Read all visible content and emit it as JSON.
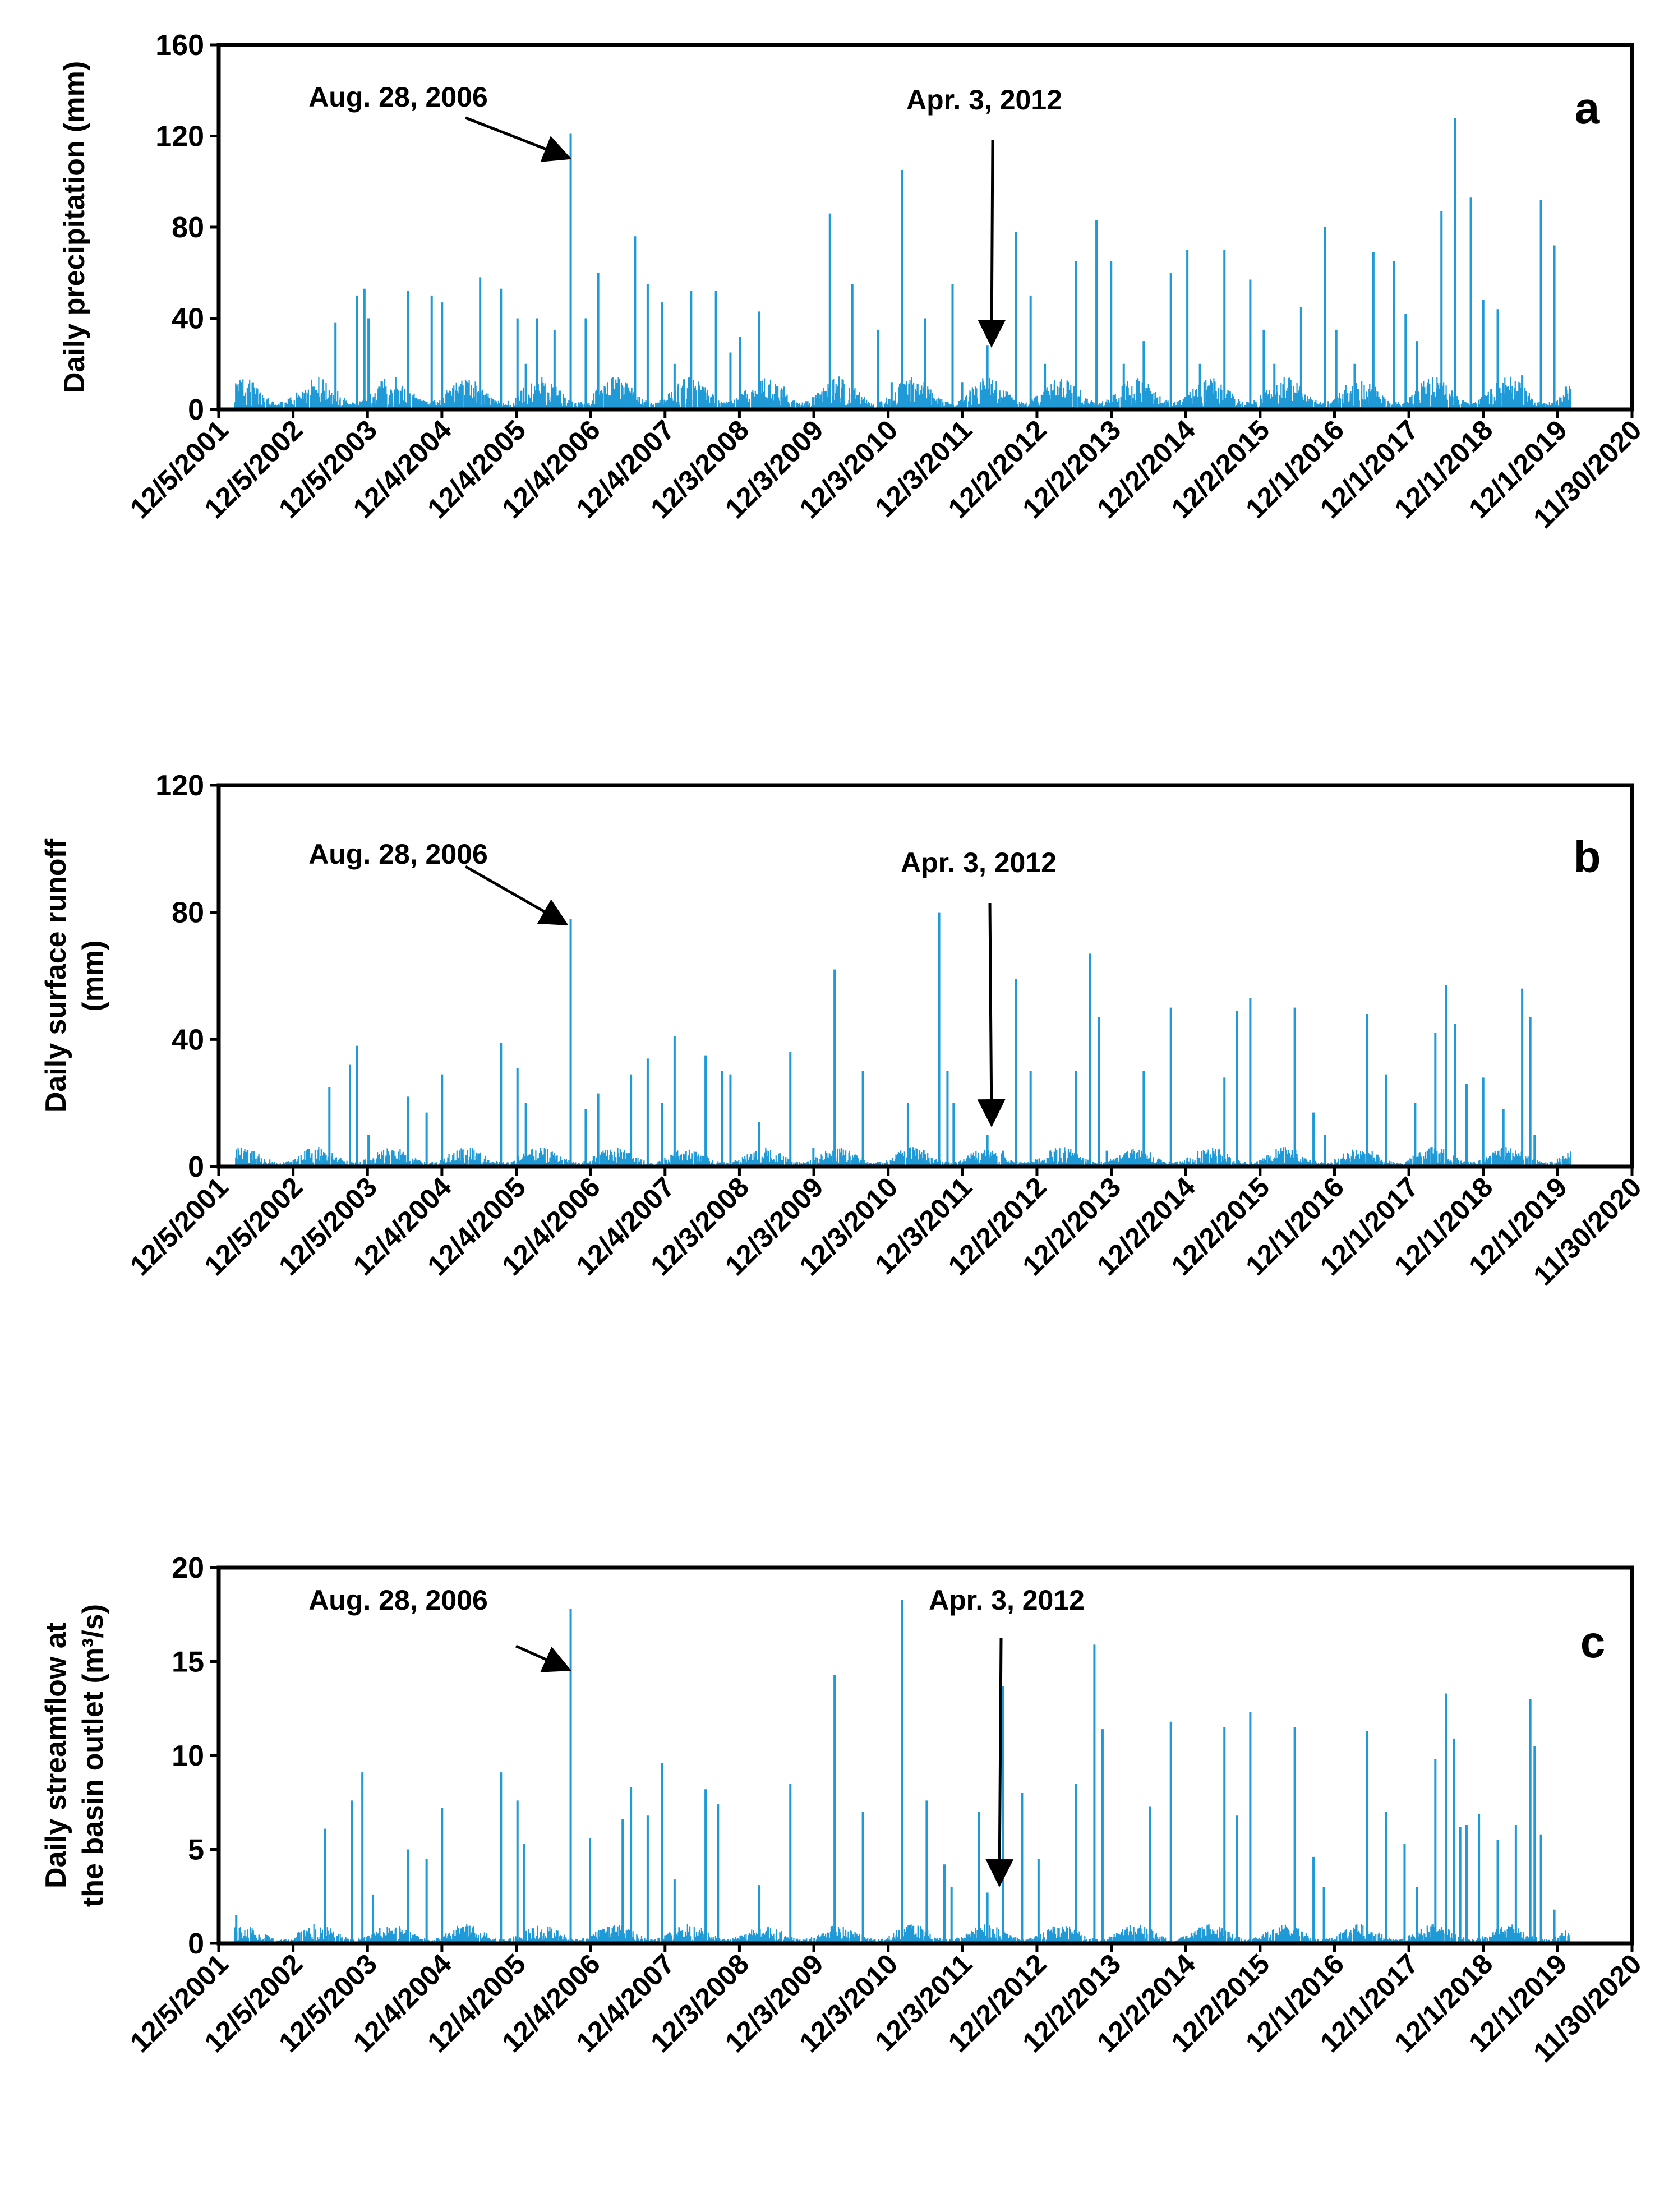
{
  "chart_data": [
    {
      "type": "bar",
      "panel_label": "a",
      "ylabel_lines": [
        "Daily precipitation (mm)"
      ],
      "ylim": [
        0,
        160
      ],
      "yticks": [
        0,
        40,
        80,
        120,
        160
      ],
      "xlim": [
        "2001-12-05",
        "2020-11-30"
      ],
      "xtick_labels": [
        "12/5/2001",
        "12/5/2002",
        "12/5/2003",
        "12/4/2004",
        "12/4/2005",
        "12/4/2006",
        "12/4/2007",
        "12/3/2008",
        "12/3/2009",
        "12/3/2010",
        "12/3/2011",
        "12/2/2012",
        "12/2/2013",
        "12/2/2014",
        "12/2/2015",
        "12/1/2016",
        "12/1/2017",
        "12/1/2018",
        "12/1/2019",
        "11/30/2020"
      ],
      "color": "#1f9ad6",
      "annotations": [
        {
          "text": "Aug. 28, 2006",
          "date": "2006-08-28",
          "value": 121
        },
        {
          "text": "Apr. 3, 2012",
          "date": "2012-04-03",
          "value": 28
        }
      ],
      "series": [
        {
          "x": [
            "2003-03-15",
            "2003-07-01",
            "2003-10-15",
            "2003-11-20",
            "2003-12-10",
            "2004-02-01",
            "2004-06-20",
            "2004-10-15",
            "2004-12-05",
            "2005-03-01",
            "2005-06-10",
            "2005-09-20",
            "2005-12-10",
            "2006-01-20",
            "2006-03-15",
            "2006-06-10",
            "2006-08-28",
            "2006-11-10",
            "2007-01-10",
            "2007-04-10",
            "2007-07-10",
            "2007-09-10",
            "2007-11-20",
            "2008-01-20",
            "2008-04-10",
            "2008-08-10",
            "2008-10-20",
            "2008-12-05",
            "2009-03-10",
            "2009-07-10",
            "2009-12-01",
            "2010-02-20",
            "2010-06-10",
            "2010-10-15",
            "2010-12-20",
            "2011-02-10",
            "2011-06-01",
            "2011-10-15",
            "2011-12-01",
            "2012-04-03",
            "2012-08-20",
            "2012-11-01",
            "2013-01-10",
            "2013-06-10",
            "2013-09-20",
            "2013-12-01",
            "2014-02-01",
            "2014-05-10",
            "2014-09-20",
            "2014-12-10",
            "2015-02-10",
            "2015-06-10",
            "2015-10-15",
            "2015-12-20",
            "2016-02-10",
            "2016-06-20",
            "2016-10-15",
            "2016-12-10",
            "2017-03-10",
            "2017-06-10",
            "2017-09-20",
            "2017-11-15",
            "2018-01-10",
            "2018-05-10",
            "2018-07-15",
            "2018-10-01",
            "2018-12-01",
            "2019-02-10",
            "2019-06-10",
            "2019-09-10",
            "2019-11-15",
            "2020-01-10"
          ],
          "values": [
            10,
            38,
            50,
            53,
            40,
            10,
            52,
            50,
            47,
            10,
            58,
            53,
            40,
            20,
            40,
            35,
            121,
            40,
            60,
            10,
            76,
            55,
            47,
            20,
            52,
            52,
            25,
            32,
            43,
            10,
            5,
            86,
            55,
            35,
            12,
            105,
            40,
            55,
            12,
            28,
            78,
            50,
            20,
            65,
            83,
            65,
            20,
            30,
            60,
            70,
            20,
            70,
            57,
            35,
            20,
            45,
            80,
            35,
            20,
            69,
            65,
            42,
            30,
            87,
            128,
            93,
            48,
            44,
            15,
            92,
            72,
            10
          ]
        }
      ]
    },
    {
      "type": "bar",
      "panel_label": "b",
      "ylabel_lines": [
        "Daily surface runoff",
        "(mm)"
      ],
      "ylim": [
        0,
        120
      ],
      "yticks": [
        0,
        40,
        80,
        120
      ],
      "xlim": [
        "2001-12-05",
        "2020-11-30"
      ],
      "xtick_labels": [
        "12/5/2001",
        "12/5/2002",
        "12/5/2003",
        "12/4/2004",
        "12/4/2005",
        "12/4/2006",
        "12/4/2007",
        "12/3/2008",
        "12/3/2009",
        "12/3/2010",
        "12/3/2011",
        "12/2/2012",
        "12/2/2013",
        "12/2/2014",
        "12/2/2015",
        "12/1/2016",
        "12/1/2017",
        "12/1/2018",
        "12/1/2019",
        "11/30/2020"
      ],
      "color": "#1f9ad6",
      "annotations": [
        {
          "text": "Aug. 28, 2006",
          "date": "2006-08-28",
          "value": 78
        },
        {
          "text": "Apr. 3, 2012",
          "date": "2012-04-03",
          "value": 10
        }
      ],
      "series": [
        {
          "x": [
            "2003-06-01",
            "2003-09-10",
            "2003-10-15",
            "2003-12-10",
            "2004-06-20",
            "2004-09-20",
            "2004-12-05",
            "2005-09-20",
            "2005-12-10",
            "2006-01-20",
            "2006-08-28",
            "2006-11-10",
            "2007-01-10",
            "2007-06-20",
            "2007-09-10",
            "2007-11-20",
            "2008-01-20",
            "2008-06-20",
            "2008-09-10",
            "2008-10-20",
            "2009-03-10",
            "2009-08-10",
            "2009-12-01",
            "2010-03-15",
            "2010-08-01",
            "2011-03-10",
            "2011-08-10",
            "2011-09-20",
            "2011-10-20",
            "2012-04-03",
            "2012-06-20",
            "2012-08-20",
            "2012-11-01",
            "2013-06-10",
            "2013-08-20",
            "2013-10-01",
            "2013-11-10",
            "2014-05-10",
            "2014-09-20",
            "2015-06-10",
            "2015-08-10",
            "2015-10-15",
            "2016-05-20",
            "2016-08-20",
            "2016-10-15",
            "2017-05-10",
            "2017-08-10",
            "2018-01-01",
            "2018-04-10",
            "2018-06-01",
            "2018-07-15",
            "2018-09-10",
            "2018-12-01",
            "2019-03-10",
            "2019-06-10",
            "2019-07-20",
            "2019-08-10"
          ],
          "values": [
            25,
            32,
            38,
            10,
            22,
            17,
            29,
            39,
            31,
            20,
            78,
            18,
            23,
            29,
            34,
            20,
            41,
            35,
            30,
            29,
            14,
            36,
            6,
            62,
            30,
            20,
            80,
            30,
            20,
            10,
            5,
            59,
            30,
            30,
            67,
            47,
            5,
            30,
            50,
            28,
            49,
            53,
            50,
            17,
            10,
            48,
            29,
            20,
            42,
            57,
            45,
            26,
            28,
            18,
            56,
            47,
            10
          ]
        }
      ]
    },
    {
      "type": "bar",
      "panel_label": "c",
      "ylabel_lines": [
        "Daily streamflow at",
        "the basin outlet (m³/s)"
      ],
      "ylim": [
        0,
        20
      ],
      "yticks": [
        0,
        5,
        10,
        15,
        20
      ],
      "xlim": [
        "2001-12-05",
        "2020-11-30"
      ],
      "xtick_labels": [
        "12/5/2001",
        "12/5/2002",
        "12/5/2003",
        "12/4/2004",
        "12/4/2005",
        "12/4/2006",
        "12/4/2007",
        "12/3/2008",
        "12/3/2009",
        "12/3/2010",
        "12/3/2011",
        "12/2/2012",
        "12/2/2013",
        "12/2/2014",
        "12/2/2015",
        "12/1/2016",
        "12/1/2017",
        "12/1/2018",
        "12/1/2019",
        "11/30/2020"
      ],
      "color": "#1f9ad6",
      "annotations": [
        {
          "text": "Aug. 28, 2006",
          "date": "2006-08-28",
          "value": 17.8
        },
        {
          "text": "Apr. 3, 2012",
          "date": "2012-04-03",
          "value": 2.7
        }
      ],
      "series": [
        {
          "x": [
            "2002-03-01",
            "2003-05-10",
            "2003-09-20",
            "2003-11-10",
            "2004-01-01",
            "2004-06-20",
            "2004-09-20",
            "2004-12-05",
            "2005-09-20",
            "2005-12-10",
            "2006-01-10",
            "2006-08-28",
            "2006-12-01",
            "2007-05-10",
            "2007-06-20",
            "2007-09-10",
            "2007-11-20",
            "2008-01-20",
            "2008-06-20",
            "2008-08-20",
            "2009-03-10",
            "2009-08-10",
            "2010-03-15",
            "2010-08-01",
            "2011-02-10",
            "2011-06-10",
            "2011-09-05",
            "2011-10-10",
            "2012-02-20",
            "2012-04-03",
            "2012-06-20",
            "2012-09-20",
            "2012-12-10",
            "2013-06-10",
            "2013-09-10",
            "2013-10-20",
            "2014-06-10",
            "2014-09-20",
            "2015-06-10",
            "2015-08-10",
            "2015-10-15",
            "2016-05-20",
            "2016-08-20",
            "2016-10-10",
            "2017-05-10",
            "2017-08-10",
            "2017-11-10",
            "2018-01-10",
            "2018-04-10",
            "2018-06-01",
            "2018-07-10",
            "2018-08-10",
            "2018-09-10",
            "2018-11-10",
            "2019-02-10",
            "2019-05-10",
            "2019-07-20",
            "2019-08-10",
            "2019-09-10",
            "2019-11-15"
          ],
          "values": [
            1.5,
            6.1,
            7.6,
            9.1,
            2.6,
            5,
            4.5,
            7.2,
            9.1,
            7.6,
            5.3,
            17.8,
            5.6,
            6.6,
            8.3,
            6.8,
            9.6,
            3.4,
            8.2,
            7.4,
            3.1,
            8.5,
            14.3,
            7,
            18.3,
            7.6,
            4.2,
            3,
            7,
            2.7,
            13.7,
            8,
            4.5,
            8.5,
            15.9,
            11.4,
            7.3,
            11.8,
            11.5,
            6.8,
            12.3,
            11.5,
            4.6,
            3,
            11.3,
            7,
            5.3,
            3,
            9.8,
            13.3,
            10.9,
            6.2,
            6.3,
            6.9,
            5.5,
            6.3,
            13,
            10.5,
            5.8,
            1.8
          ]
        }
      ]
    }
  ]
}
